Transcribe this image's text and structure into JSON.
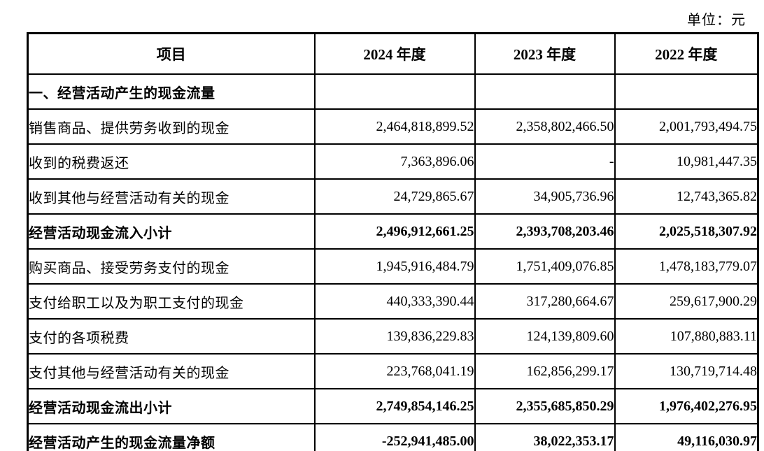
{
  "meta": {
    "unit_label": "单位：元"
  },
  "table": {
    "columns": [
      "项目",
      "2024 年度",
      "2023 年度",
      "2022 年度"
    ],
    "rows": [
      {
        "label": "一、经营活动产生的现金流量",
        "values": [
          "",
          "",
          ""
        ],
        "bold": true
      },
      {
        "label": "销售商品、提供劳务收到的现金",
        "values": [
          "2,464,818,899.52",
          "2,358,802,466.50",
          "2,001,793,494.75"
        ],
        "bold": false
      },
      {
        "label": "收到的税费返还",
        "values": [
          "7,363,896.06",
          "-",
          "10,981,447.35"
        ],
        "bold": false
      },
      {
        "label": "收到其他与经营活动有关的现金",
        "values": [
          "24,729,865.67",
          "34,905,736.96",
          "12,743,365.82"
        ],
        "bold": false
      },
      {
        "label": "经营活动现金流入小计",
        "values": [
          "2,496,912,661.25",
          "2,393,708,203.46",
          "2,025,518,307.92"
        ],
        "bold": true
      },
      {
        "label": "购买商品、接受劳务支付的现金",
        "values": [
          "1,945,916,484.79",
          "1,751,409,076.85",
          "1,478,183,779.07"
        ],
        "bold": false
      },
      {
        "label": "支付给职工以及为职工支付的现金",
        "values": [
          "440,333,390.44",
          "317,280,664.67",
          "259,617,900.29"
        ],
        "bold": false
      },
      {
        "label": "支付的各项税费",
        "values": [
          "139,836,229.83",
          "124,139,809.60",
          "107,880,883.11"
        ],
        "bold": false
      },
      {
        "label": "支付其他与经营活动有关的现金",
        "values": [
          "223,768,041.19",
          "162,856,299.17",
          "130,719,714.48"
        ],
        "bold": false
      },
      {
        "label": "经营活动现金流出小计",
        "values": [
          "2,749,854,146.25",
          "2,355,685,850.29",
          "1,976,402,276.95"
        ],
        "bold": true
      },
      {
        "label": "经营活动产生的现金流量净额",
        "values": [
          "-252,941,485.00",
          "38,022,353.17",
          "49,116,030.97"
        ],
        "bold": true
      }
    ]
  }
}
